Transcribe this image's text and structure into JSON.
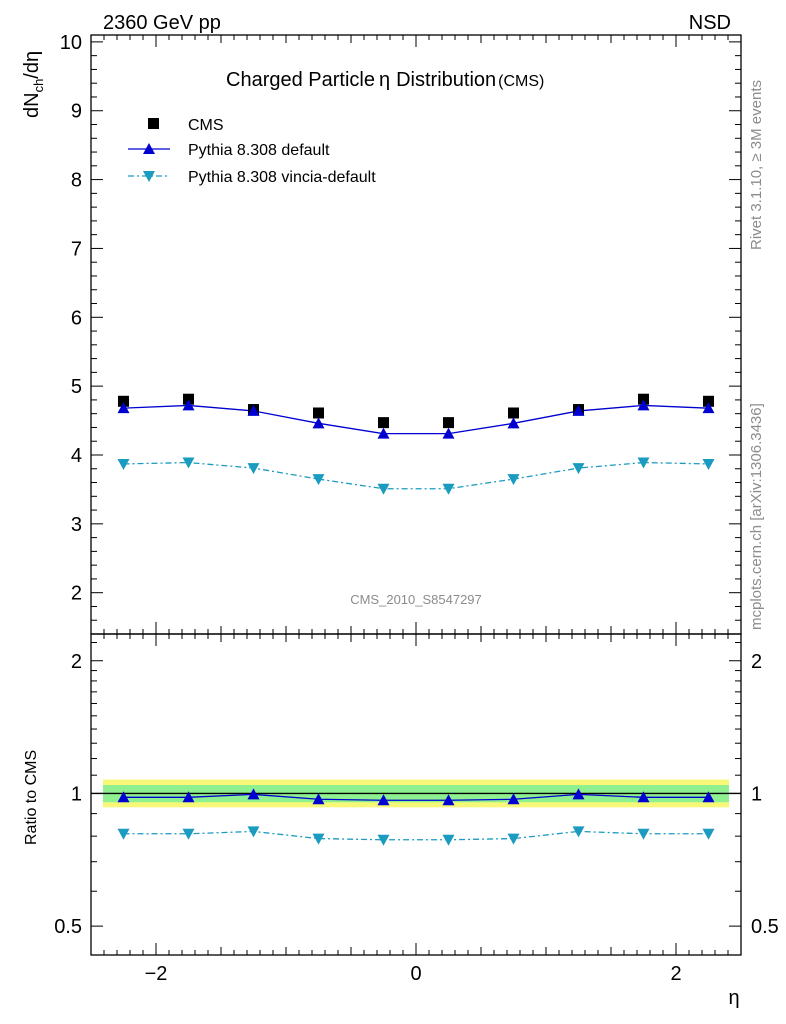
{
  "header": {
    "left": "2360 GeV pp",
    "right": "NSD"
  },
  "side_texts": {
    "rivet": "Rivet 3.1.10, ≥ 3M events",
    "mcplots": "mcplots.cern.ch [arXiv:1306.3436]"
  },
  "colors": {
    "cms": "#000000",
    "pythia_default": "#0000d0",
    "pythia_vincia": "#1a9bbf",
    "band_inner": "#8ff08f",
    "band_outer": "#f8f878"
  },
  "chart_data": [
    {
      "type": "scatter",
      "title_main": "Charged Particle",
      "title_eta": "η",
      "title_rest": "Distribution",
      "title_tag": "(CMS)",
      "watermark": "CMS_2010_S8547297",
      "ylabel_parts": [
        "dN",
        "ch",
        "/dη"
      ],
      "xlim": [
        -2.5,
        2.5
      ],
      "ylim": [
        1.4,
        10.1
      ],
      "yticks": [
        2,
        3,
        4,
        5,
        6,
        7,
        8,
        9,
        10
      ],
      "x": [
        -2.25,
        -1.75,
        -1.25,
        -0.75,
        -0.25,
        0.25,
        0.75,
        1.25,
        1.75,
        2.25
      ],
      "series": [
        {
          "name": "CMS",
          "marker": "square",
          "values": [
            4.78,
            4.81,
            4.66,
            4.61,
            4.47,
            4.47,
            4.61,
            4.66,
            4.81,
            4.78
          ]
        },
        {
          "name": "Pythia 8.308 default",
          "marker": "triangle-up",
          "line": "solid",
          "values": [
            4.68,
            4.72,
            4.64,
            4.46,
            4.31,
            4.31,
            4.46,
            4.64,
            4.72,
            4.68
          ]
        },
        {
          "name": "Pythia 8.308 vincia-default",
          "marker": "triangle-down",
          "line": "dashdot",
          "values": [
            3.87,
            3.89,
            3.81,
            3.65,
            3.51,
            3.51,
            3.65,
            3.81,
            3.89,
            3.87
          ]
        }
      ]
    },
    {
      "type": "line",
      "ylabel": "Ratio to CMS",
      "xlabel": "η",
      "xlim": [
        -2.5,
        2.5
      ],
      "ylim": [
        0.43,
        2.3
      ],
      "yscale": "log",
      "yticks": [
        0.5,
        1,
        2
      ],
      "ytick_labels": [
        "0.5",
        "1",
        "2"
      ],
      "xticks": [
        -2,
        0,
        2
      ],
      "xtick_labels": [
        "−2",
        "0",
        "2"
      ],
      "x": [
        -2.25,
        -1.75,
        -1.25,
        -0.75,
        -0.25,
        0.25,
        0.75,
        1.25,
        1.75,
        2.25
      ],
      "band_inner": [
        0.955,
        1.045
      ],
      "band_outer": [
        0.93,
        1.075
      ],
      "series": [
        {
          "name": "Pythia 8.308 default",
          "values": [
            0.98,
            0.98,
            0.995,
            0.97,
            0.965,
            0.965,
            0.97,
            0.995,
            0.98,
            0.98
          ]
        },
        {
          "name": "Pythia 8.308 vincia-default",
          "values": [
            0.81,
            0.81,
            0.82,
            0.79,
            0.785,
            0.785,
            0.79,
            0.82,
            0.81,
            0.81
          ]
        }
      ]
    }
  ]
}
